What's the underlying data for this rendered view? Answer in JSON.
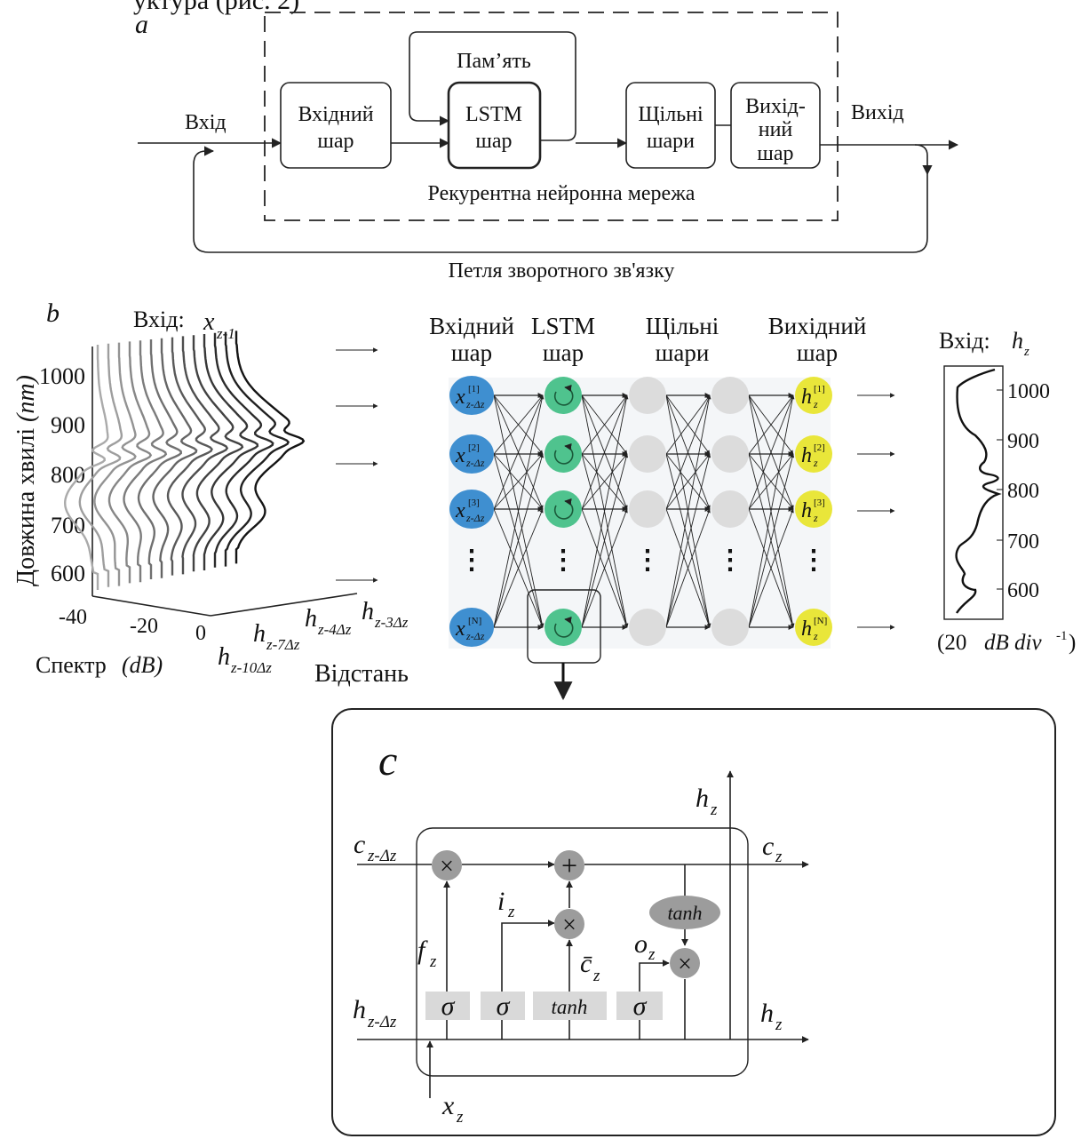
{
  "header_partial": "уктура (рис. 2)",
  "panel_a": {
    "letter": "a",
    "input_label": "Вхід",
    "output_label": "Вихід",
    "memory_label": "Пам’ять",
    "input_layer": [
      "Вхідний",
      "шар"
    ],
    "lstm_layer": [
      "LSTM",
      "шар"
    ],
    "dense_layers": [
      "Щільні",
      "шари"
    ],
    "output_layer": [
      "Вихід-",
      "ний",
      "шар"
    ],
    "rnn_label": "Рекурентна нейронна мережа",
    "feedback_label": "Петля зворотного зв'язку"
  },
  "panel_b": {
    "letter": "b",
    "input_title": "Вхід:",
    "input_var": "x",
    "input_sub": "z-1",
    "y_axis_label": "Довжина хвилі",
    "y_axis_unit": "(nm)",
    "y_ticks": [
      "1000",
      "900",
      "800",
      "700",
      "600"
    ],
    "x_ticks": [
      "-40",
      "-20",
      "0"
    ],
    "x_axis_label": "Спектр",
    "x_axis_unit": "(dB)",
    "depth_labels": [
      {
        "base": "h",
        "sub": "z-3Δz"
      },
      {
        "base": "h",
        "sub": "z-4Δz"
      },
      {
        "base": "h",
        "sub": "z-7Δz"
      },
      {
        "base": "h",
        "sub": "z-10Δz"
      }
    ],
    "distance_label": "Відстань",
    "col_input": [
      "Вхідний",
      "шар"
    ],
    "col_lstm": [
      "LSTM",
      "шар"
    ],
    "col_dense": [
      "Щільні",
      "шари"
    ],
    "col_output": [
      "Вихідний",
      "шар"
    ],
    "input_nodes": [
      {
        "base": "x",
        "sup": "[1]",
        "sub": "z-Δz"
      },
      {
        "base": "x",
        "sup": "[2]",
        "sub": "z-Δz"
      },
      {
        "base": "x",
        "sup": "[3]",
        "sub": "z-Δz"
      },
      {
        "base": "x",
        "sup": "[N]",
        "sub": "z-Δz"
      }
    ],
    "output_nodes": [
      {
        "base": "h",
        "sup": "[1]",
        "sub": "z"
      },
      {
        "base": "h",
        "sup": "[2]",
        "sub": "z"
      },
      {
        "base": "h",
        "sup": "[3]",
        "sub": "z"
      },
      {
        "base": "h",
        "sup": "[N]",
        "sub": "z"
      }
    ],
    "ellipsis": "⋮",
    "right_title": "Вхід:",
    "right_var": "h",
    "right_sub": "z",
    "right_ticks": [
      "1000",
      "900",
      "800",
      "700",
      "600"
    ],
    "right_scale_prefix": "(20",
    "right_scale_unit": "dB div",
    "right_scale_sup": "-1",
    "right_scale_suffix": ")",
    "colors": {
      "input": "#3f8fd0",
      "lstm": "#4fc38e",
      "dense": "#dcdcdc",
      "output": "#e9e63a"
    }
  },
  "panel_c": {
    "letter": "c",
    "c_prev": {
      "base": "c",
      "sub": "z-Δz"
    },
    "h_prev": {
      "base": "h",
      "sub": "z-Δz"
    },
    "x_in": {
      "base": "x",
      "sub": "z"
    },
    "c_out": {
      "base": "c",
      "sub": "z"
    },
    "h_out": {
      "base": "h",
      "sub": "z"
    },
    "h_top": {
      "base": "h",
      "sub": "z"
    },
    "f_gate": {
      "base": "f",
      "sub": "z"
    },
    "i_gate": {
      "base": "i",
      "sub": "z"
    },
    "o_gate": {
      "base": "o",
      "sub": "z"
    },
    "c_tilde": {
      "base": "c̄",
      "sub": "z"
    },
    "sigma": "σ",
    "tanh": "tanh",
    "times": "×",
    "plus": "+"
  }
}
